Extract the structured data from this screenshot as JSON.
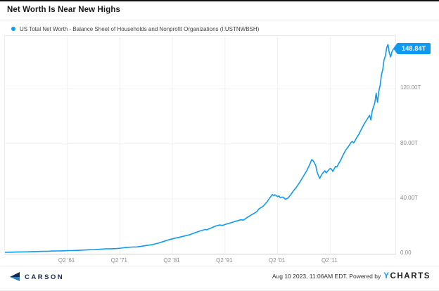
{
  "header": {
    "title": "Net Worth Is Near New Highs"
  },
  "legend": {
    "label": "US Total Net Worth - Balance Sheet of Households and Nonprofit Organizations (I:USTNWBSH)"
  },
  "badge": {
    "value": "148.84T"
  },
  "footer": {
    "carson_label": "CARSON",
    "timestamp": "Aug 10 2023, 11:06AM EDT. Powered by",
    "ycharts_y": "Y",
    "ycharts_rest": "CHARTS"
  },
  "colors": {
    "accent_blue": "#0f9af0",
    "grid": "#f0f0f0",
    "tick_label": "#8a8a8a",
    "carson_navy": "#16294c",
    "carson_blue": "#2e7fc1"
  },
  "chart_data": {
    "type": "line",
    "title": "Net Worth Is Near New Highs",
    "series_name": "US Total Net Worth - Balance Sheet of Households and Nonprofit Organizations (I:USTNWBSH)",
    "unit": "trillions USD",
    "last_value": 148.84,
    "last_label": "148.84T",
    "legend_position": "top-left",
    "grid": true,
    "x_range": [
      1949.4,
      2023.65
    ],
    "y_range": [
      0,
      158.6
    ],
    "x_ticks": [
      {
        "year": 1961.25,
        "label": "Q2 '61"
      },
      {
        "year": 1971.25,
        "label": "Q2 '71"
      },
      {
        "year": 1981.25,
        "label": "Q2 '81"
      },
      {
        "year": 1991.25,
        "label": "Q2 '91"
      },
      {
        "year": 2001.25,
        "label": "Q2 '01"
      },
      {
        "year": 2011.25,
        "label": "Q2 '11"
      }
    ],
    "y_ticks": [
      {
        "value": 0,
        "label": "0.00"
      },
      {
        "value": 40,
        "label": "40.00T"
      },
      {
        "value": 80,
        "label": "80.00T"
      },
      {
        "value": 120,
        "label": "120.00T"
      }
    ],
    "points": [
      [
        1949.5,
        1.0
      ],
      [
        1950.5,
        1.15
      ],
      [
        1951.5,
        1.25
      ],
      [
        1952.5,
        1.33
      ],
      [
        1953.5,
        1.37
      ],
      [
        1954.5,
        1.5
      ],
      [
        1955.5,
        1.63
      ],
      [
        1956.5,
        1.75
      ],
      [
        1957.5,
        1.79
      ],
      [
        1958.5,
        1.98
      ],
      [
        1959.5,
        2.07
      ],
      [
        1960.5,
        2.14
      ],
      [
        1961.5,
        2.3
      ],
      [
        1962.5,
        2.35
      ],
      [
        1963.5,
        2.51
      ],
      [
        1964.5,
        2.69
      ],
      [
        1965.5,
        2.9
      ],
      [
        1966.5,
        2.98
      ],
      [
        1967.5,
        3.25
      ],
      [
        1968.5,
        3.58
      ],
      [
        1969.5,
        3.62
      ],
      [
        1970.5,
        3.75
      ],
      [
        1971.5,
        4.1
      ],
      [
        1972.5,
        4.55
      ],
      [
        1973.5,
        4.88
      ],
      [
        1974.5,
        4.98
      ],
      [
        1975.5,
        5.5
      ],
      [
        1976.5,
        6.1
      ],
      [
        1977.5,
        6.7
      ],
      [
        1978.5,
        7.65
      ],
      [
        1979.5,
        8.85
      ],
      [
        1980.5,
        10.1
      ],
      [
        1981.5,
        11.1
      ],
      [
        1982.5,
        11.9
      ],
      [
        1983.5,
        12.9
      ],
      [
        1984.5,
        13.8
      ],
      [
        1985.5,
        15.2
      ],
      [
        1986.5,
        16.6
      ],
      [
        1987.5,
        17.7
      ],
      [
        1987.75,
        17.4
      ],
      [
        1988.5,
        18.6
      ],
      [
        1989.5,
        20.2
      ],
      [
        1990.25,
        21.0
      ],
      [
        1990.75,
        20.6
      ],
      [
        1991.5,
        21.6
      ],
      [
        1992.5,
        22.7
      ],
      [
        1993.5,
        23.9
      ],
      [
        1994.25,
        24.7
      ],
      [
        1994.75,
        24.5
      ],
      [
        1995.5,
        26.5
      ],
      [
        1996.5,
        28.8
      ],
      [
        1997.25,
        30.5
      ],
      [
        1997.75,
        32.8
      ],
      [
        1998.5,
        34.6
      ],
      [
        1999.25,
        37.8
      ],
      [
        1999.75,
        40.6
      ],
      [
        2000.25,
        43.1
      ],
      [
        2000.5,
        42.3
      ],
      [
        2000.75,
        42.9
      ],
      [
        2001.25,
        41.6
      ],
      [
        2001.5,
        42.1
      ],
      [
        2001.75,
        40.9
      ],
      [
        2002.25,
        41.3
      ],
      [
        2002.75,
        39.6
      ],
      [
        2003.25,
        40.6
      ],
      [
        2003.75,
        43.0
      ],
      [
        2004.25,
        45.8
      ],
      [
        2004.75,
        48.0
      ],
      [
        2005.25,
        50.8
      ],
      [
        2005.75,
        53.8
      ],
      [
        2006.25,
        57.0
      ],
      [
        2006.75,
        60.2
      ],
      [
        2007.25,
        64.0
      ],
      [
        2007.75,
        68.5
      ],
      [
        2008.0,
        67.8
      ],
      [
        2008.25,
        66.2
      ],
      [
        2008.5,
        64.2
      ],
      [
        2008.75,
        59.6
      ],
      [
        2009.25,
        54.8
      ],
      [
        2009.5,
        56.6
      ],
      [
        2009.75,
        58.2
      ],
      [
        2010.25,
        60.4
      ],
      [
        2010.5,
        58.9
      ],
      [
        2010.75,
        60.1
      ],
      [
        2011.25,
        62.1
      ],
      [
        2011.5,
        61.6
      ],
      [
        2011.75,
        59.9
      ],
      [
        2012.25,
        63.6
      ],
      [
        2012.5,
        63.1
      ],
      [
        2012.75,
        64.7
      ],
      [
        2013.25,
        68.2
      ],
      [
        2013.75,
        72.2
      ],
      [
        2014.25,
        75.7
      ],
      [
        2014.75,
        78.2
      ],
      [
        2015.25,
        81.2
      ],
      [
        2015.5,
        81.7
      ],
      [
        2015.75,
        80.7
      ],
      [
        2016.25,
        84.2
      ],
      [
        2016.75,
        87.2
      ],
      [
        2017.25,
        91.2
      ],
      [
        2017.75,
        94.7
      ],
      [
        2018.25,
        97.7
      ],
      [
        2018.75,
        100.8
      ],
      [
        2019.0,
        97.3
      ],
      [
        2019.25,
        104.0
      ],
      [
        2019.5,
        107.0
      ],
      [
        2019.75,
        110.0
      ],
      [
        2020.0,
        116.9
      ],
      [
        2020.25,
        110.2
      ],
      [
        2020.5,
        118.4
      ],
      [
        2020.75,
        122.5
      ],
      [
        2021.0,
        130.2
      ],
      [
        2021.25,
        134.1
      ],
      [
        2021.5,
        141.0
      ],
      [
        2021.75,
        144.0
      ],
      [
        2022.0,
        150.1
      ],
      [
        2022.25,
        152.3
      ],
      [
        2022.5,
        146.1
      ],
      [
        2022.75,
        143.2
      ],
      [
        2023.0,
        147.0
      ],
      [
        2023.25,
        148.84
      ]
    ]
  }
}
